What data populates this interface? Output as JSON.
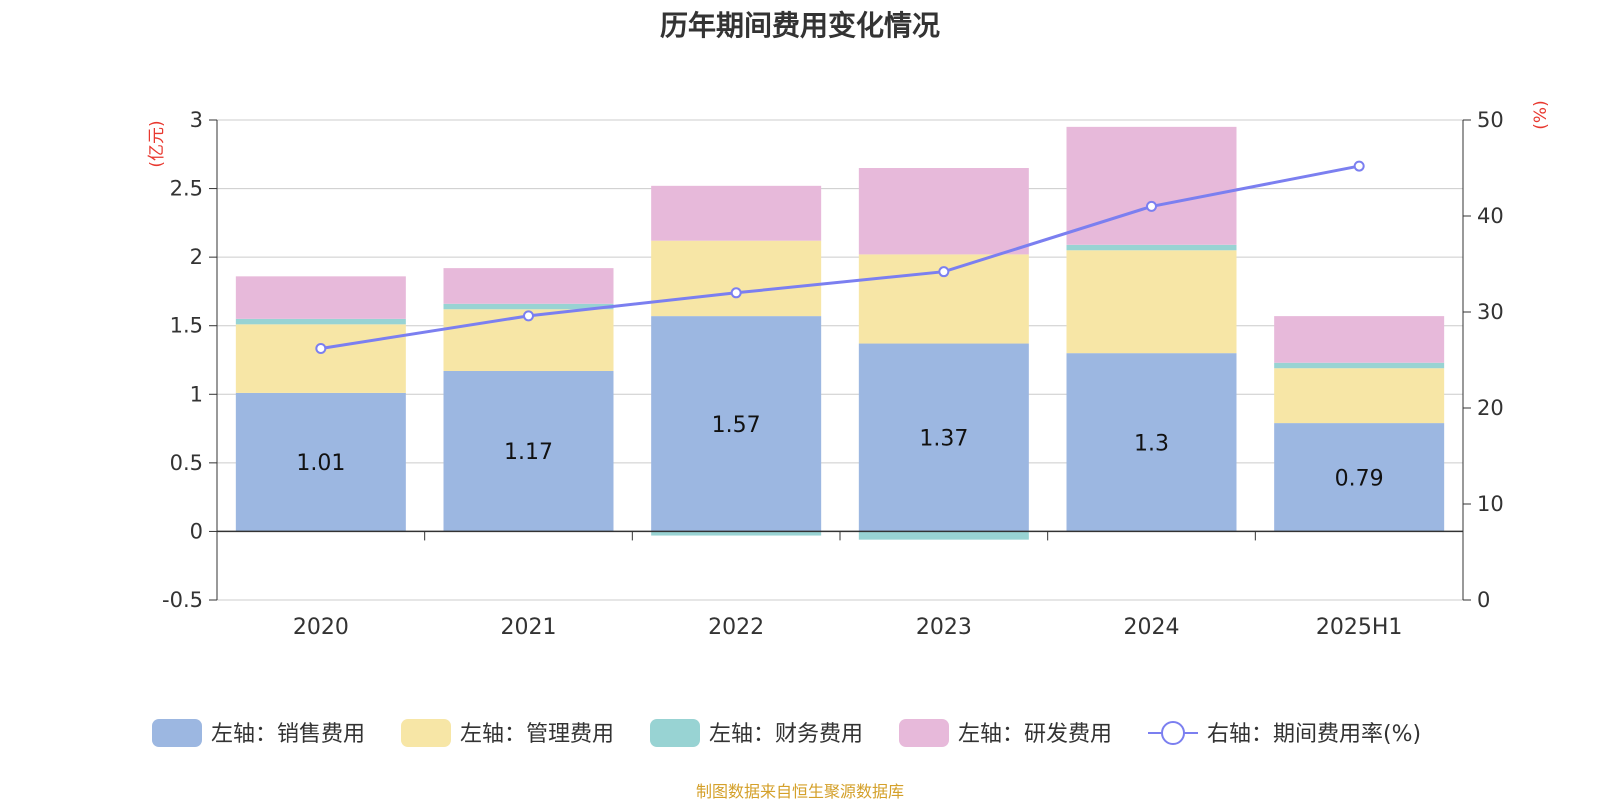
{
  "chart_data": {
    "type": "bar",
    "title": "历年期间费用变化情况",
    "categories": [
      "2020",
      "2021",
      "2022",
      "2023",
      "2024",
      "2025H1"
    ],
    "left_axis": {
      "unit": "(亿元)",
      "ylim": [
        -0.5,
        3
      ],
      "ticks": [
        "3",
        "2.5",
        "2",
        "1.5",
        "1",
        "0.5",
        "0",
        "-0.5"
      ]
    },
    "right_axis": {
      "unit": "(%)",
      "ylim": [
        0,
        50
      ],
      "ticks": [
        "50",
        "40",
        "30",
        "20",
        "10",
        "0"
      ]
    },
    "series": [
      {
        "name": "左轴：销售费用",
        "type": "bar",
        "stack": "left",
        "color": "#9cb7e1",
        "values": [
          1.01,
          1.17,
          1.57,
          1.37,
          1.3,
          0.79
        ],
        "labels": [
          "1.01",
          "1.17",
          "1.57",
          "1.37",
          "1.3",
          "0.79"
        ]
      },
      {
        "name": "左轴：管理费用",
        "type": "bar",
        "stack": "left",
        "color": "#f7e6a6",
        "values": [
          0.5,
          0.45,
          0.55,
          0.65,
          0.75,
          0.4
        ]
      },
      {
        "name": "左轴：财务费用",
        "type": "bar",
        "stack": "left",
        "color": "#98d3d3",
        "values": [
          0.04,
          0.04,
          -0.03,
          -0.06,
          0.04,
          0.04
        ]
      },
      {
        "name": "左轴：研发费用",
        "type": "bar",
        "stack": "left",
        "color": "#e7b9da",
        "values": [
          0.31,
          0.26,
          0.4,
          0.63,
          0.86,
          0.34
        ]
      },
      {
        "name": "右轴：期间费用率(%)",
        "type": "line",
        "axis": "right",
        "color": "#7b7ff0",
        "values": [
          26.2,
          29.6,
          32.0,
          34.2,
          41.0,
          45.2
        ]
      }
    ],
    "legend_position": "bottom",
    "grid": true
  },
  "source": {
    "text": "制图数据来自恒生聚源数据库",
    "color": "#d4a02a"
  },
  "axis_colors": {
    "unit_label": "#e8382f",
    "tick_text": "#333333",
    "grid": "#cccccc"
  }
}
